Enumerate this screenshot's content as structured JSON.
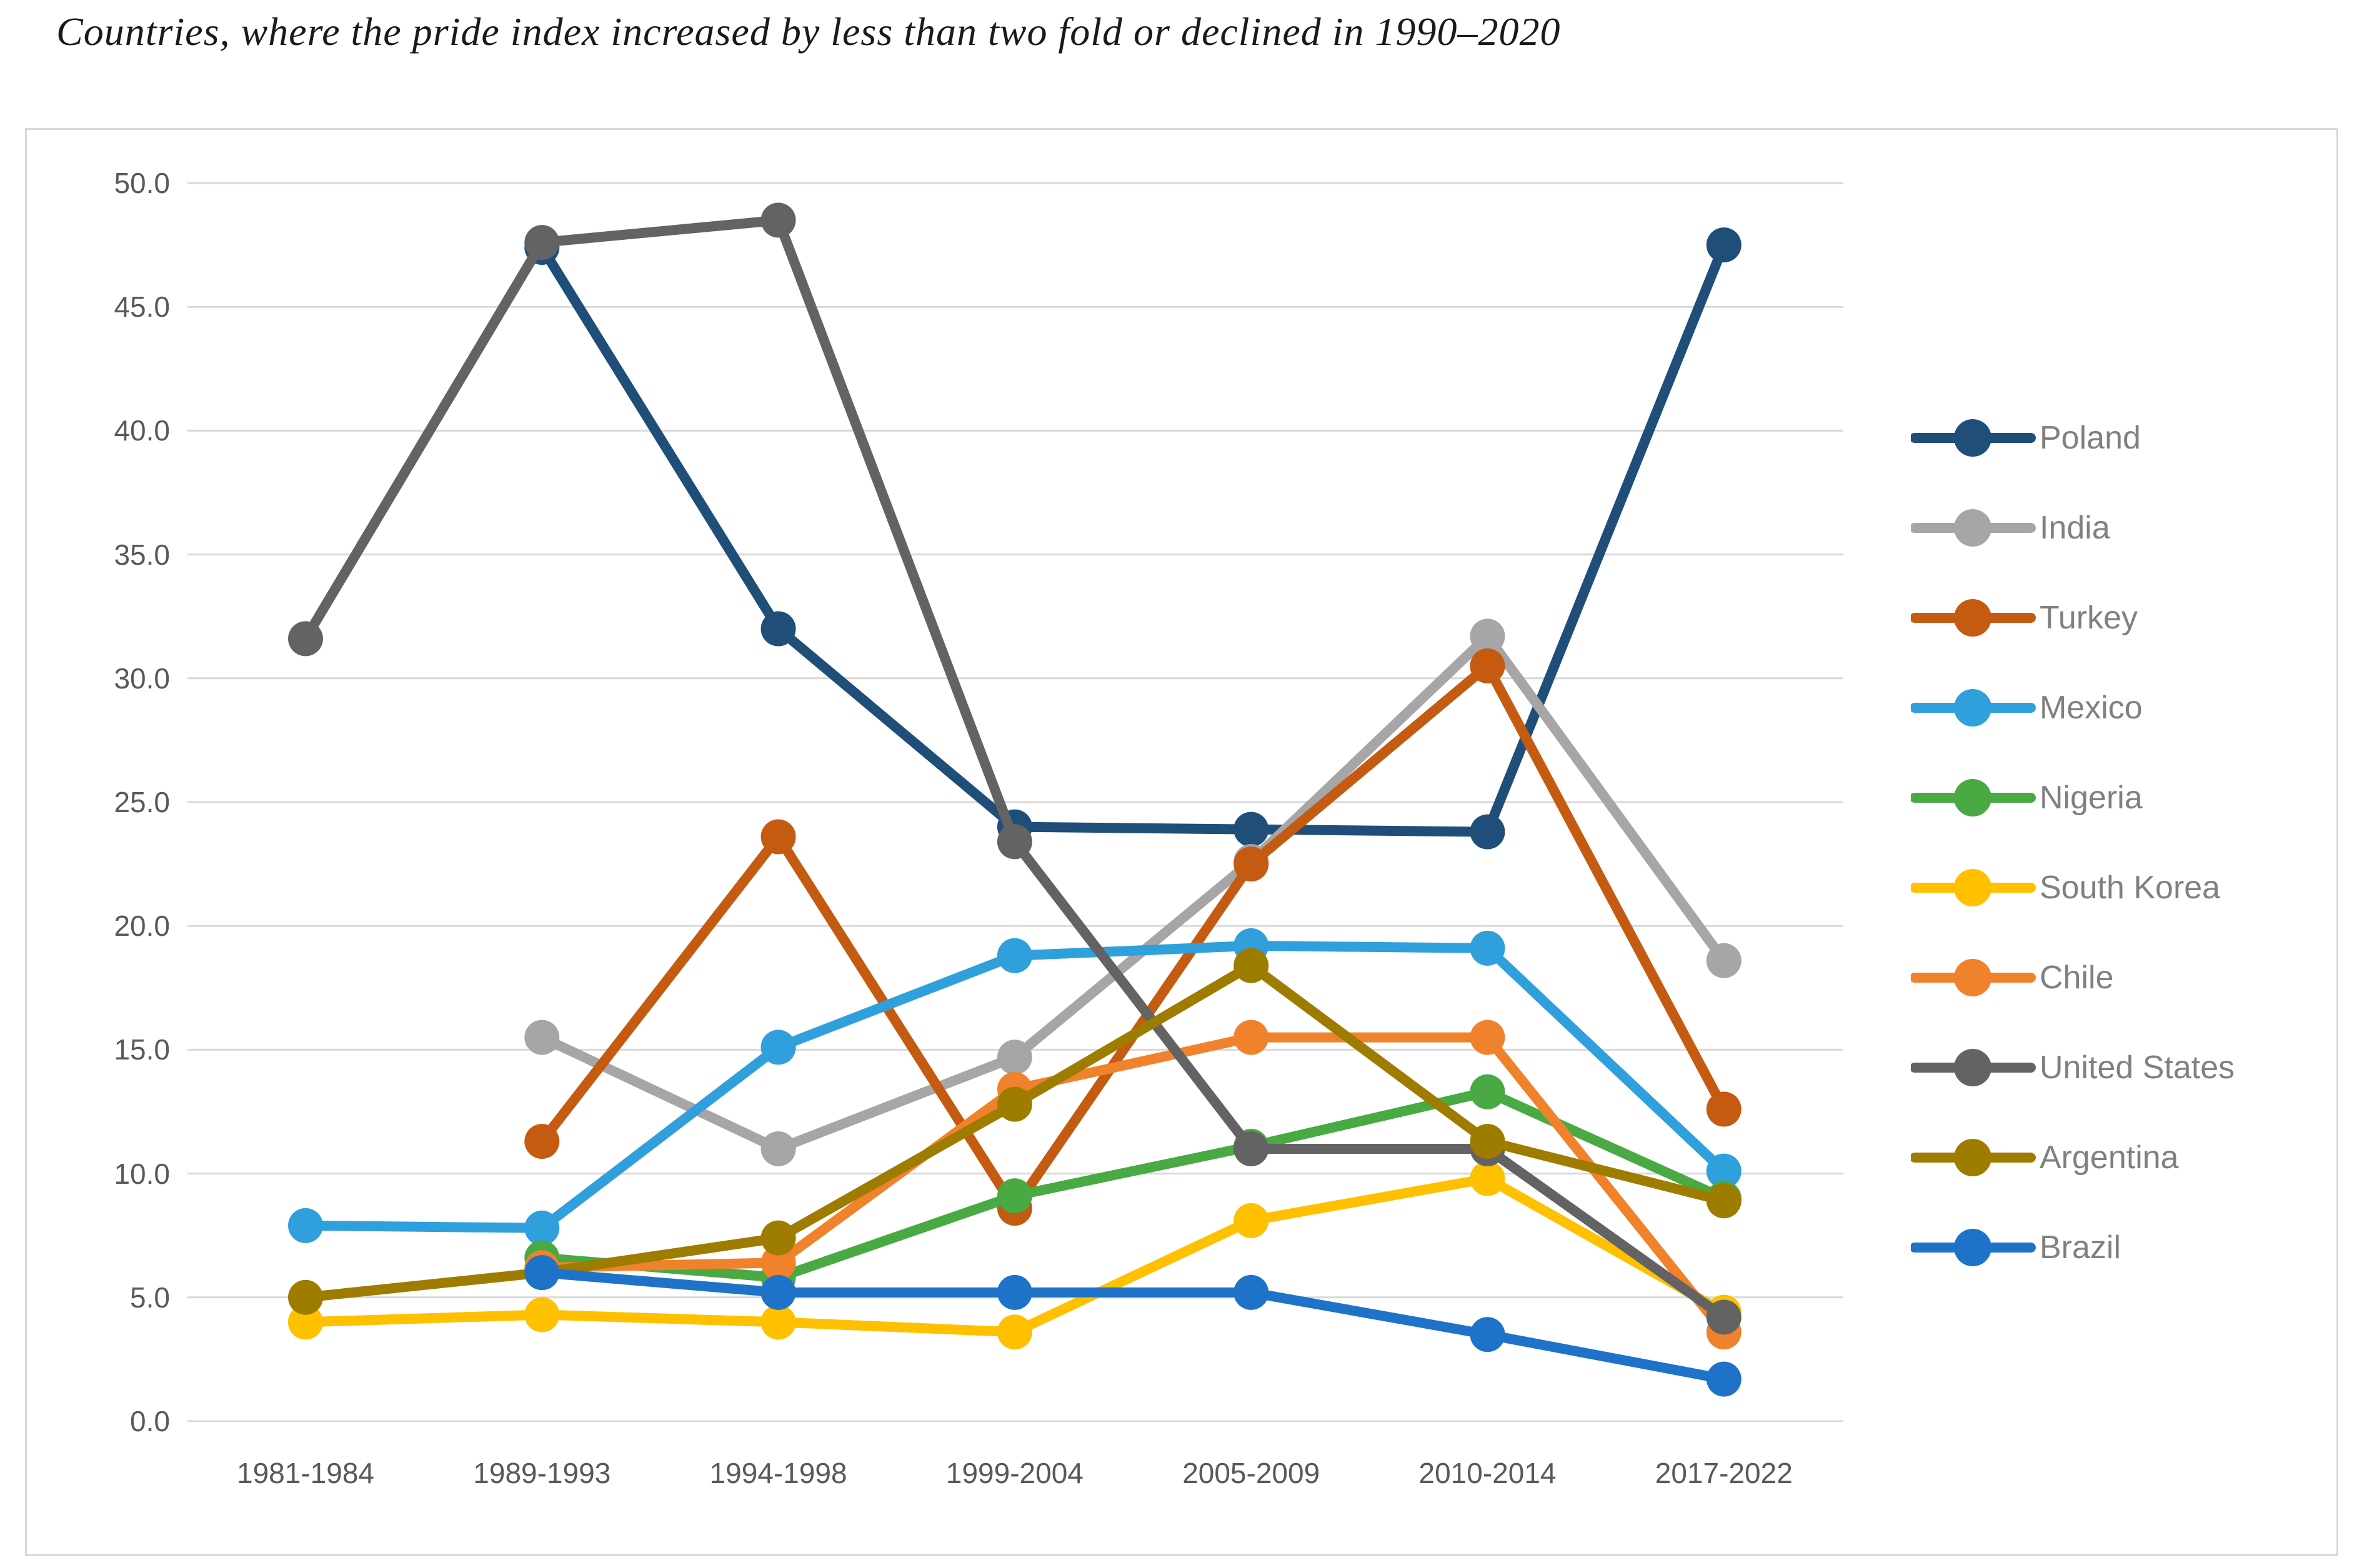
{
  "title": "Countries, where the pride index increased by less than two fold or declined in 1990–2020",
  "chart_data": {
    "type": "line",
    "title": "Countries, where the pride index increased by less than two fold or declined in 1990–2020",
    "categories": [
      "1981-1984",
      "1989-1993",
      "1994-1998",
      "1999-2004",
      "2005-2009",
      "2010-2014",
      "2017-2022"
    ],
    "series": [
      {
        "name": "Poland",
        "color": "#1F4E79",
        "values": [
          null,
          47.4,
          32.0,
          24.0,
          23.9,
          23.8,
          47.5
        ]
      },
      {
        "name": "India",
        "color": "#A6A6A6",
        "values": [
          null,
          15.5,
          11.0,
          14.7,
          22.6,
          31.7,
          18.6
        ]
      },
      {
        "name": "Turkey",
        "color": "#C55A11",
        "values": [
          null,
          11.3,
          23.6,
          8.6,
          22.5,
          30.5,
          12.6
        ]
      },
      {
        "name": "Mexico",
        "color": "#2FA0DB",
        "values": [
          7.9,
          7.8,
          15.1,
          18.8,
          19.2,
          19.1,
          10.1
        ]
      },
      {
        "name": "Nigeria",
        "color": "#49A942",
        "values": [
          null,
          6.6,
          5.8,
          9.1,
          11.1,
          13.3,
          9.0
        ]
      },
      {
        "name": "South Korea",
        "color": "#FFC000",
        "values": [
          4.0,
          4.3,
          4.0,
          3.6,
          8.1,
          9.8,
          4.4
        ]
      },
      {
        "name": "Chile",
        "color": "#F0822C",
        "values": [
          null,
          6.2,
          6.4,
          13.4,
          15.5,
          15.5,
          3.6
        ]
      },
      {
        "name": "United States",
        "color": "#636363",
        "values": [
          31.6,
          47.6,
          48.5,
          23.4,
          11.0,
          11.0,
          4.2
        ]
      },
      {
        "name": "Argentina",
        "color": "#9E7C00",
        "values": [
          5.0,
          6.0,
          7.4,
          12.8,
          18.4,
          11.3,
          8.9
        ]
      },
      {
        "name": "Brazil",
        "color": "#1E73C8",
        "values": [
          null,
          6.0,
          5.2,
          5.2,
          5.2,
          3.5,
          1.7
        ]
      }
    ],
    "xlabel": "",
    "ylabel": "",
    "ylim": [
      0,
      50
    ],
    "ytick_step": 5,
    "ytick_decimals": 1,
    "grid": true,
    "legend_position": "right"
  },
  "style": {
    "background": "#FFFFFF",
    "grid_color": "#D9D9D9",
    "border_color": "#D9D9D9",
    "tick_text_color": "#595959",
    "legend_text_color": "#808080"
  }
}
